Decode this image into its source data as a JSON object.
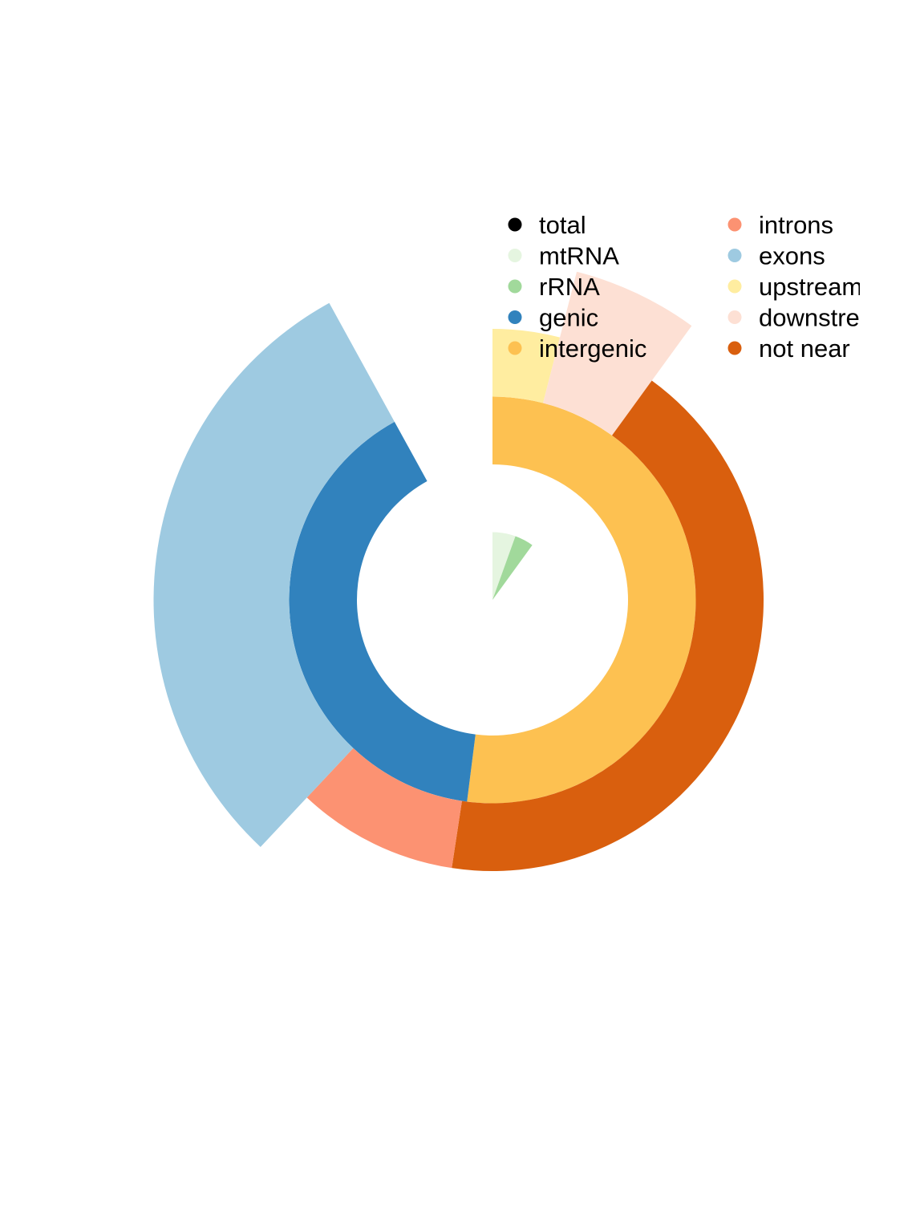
{
  "chart_data": {
    "type": "pie",
    "subtype": "multi-level donut (sunburst)",
    "rings": [
      {
        "level": "inner",
        "segments": [
          {
            "name": "mtRNA",
            "value": 0.055,
            "color": "#e5f5e0",
            "depth": 1.0
          },
          {
            "name": "rRNA",
            "value": 0.045,
            "color": "#a1d99b",
            "depth": 1.0
          }
        ]
      },
      {
        "level": "middle",
        "segments": [
          {
            "name": "intergenic",
            "value": 0.52,
            "color": "#fdc151",
            "depth": 1.0
          },
          {
            "name": "genic",
            "value": 0.4,
            "color": "#3182bd",
            "depth": 1.0
          }
        ]
      },
      {
        "level": "outer",
        "segments": [
          {
            "name": "upstream",
            "value": 0.04,
            "color": "#ffeda0",
            "depth": 1.0
          },
          {
            "name": "downstream",
            "value": 0.06,
            "color": "#fde0d4",
            "depth": 2.0
          },
          {
            "name": "not near",
            "value": 0.424,
            "color": "#d95f0e",
            "depth": 1.0
          },
          {
            "name": "introns",
            "value": 0.096,
            "color": "#fc9272",
            "depth": 1.0
          },
          {
            "name": "exons",
            "value": 0.3,
            "color": "#9ecae1",
            "depth": 2.0
          }
        ]
      }
    ],
    "legend": {
      "position": "top-right",
      "columns": 2,
      "entries": [
        {
          "label": "total",
          "color": "#000000"
        },
        {
          "label": "mtRNA",
          "color": "#e5f5e0"
        },
        {
          "label": "rRNA",
          "color": "#a1d99b"
        },
        {
          "label": "genic",
          "color": "#3182bd"
        },
        {
          "label": "intergenic",
          "color": "#fdc151"
        },
        {
          "label": "introns",
          "color": "#fc9272"
        },
        {
          "label": "exons",
          "color": "#9ecae1"
        },
        {
          "label": "upstream",
          "color": "#ffeda0"
        },
        {
          "label": "downstream",
          "color": "#fde0d4"
        },
        {
          "label": "not near",
          "color": "#d95f0e"
        }
      ]
    }
  }
}
